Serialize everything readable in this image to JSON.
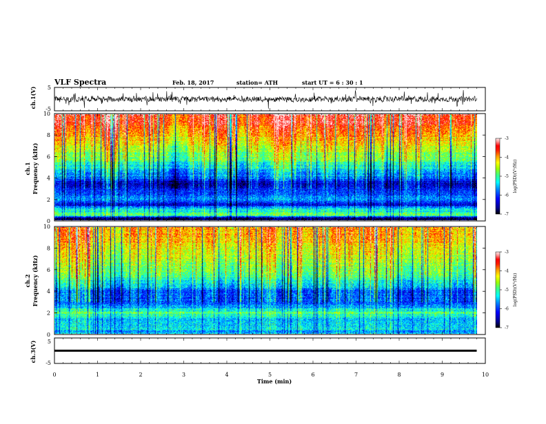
{
  "header": {
    "title": "VLF Spectra",
    "date": "Feb. 18, 2017",
    "station": "station= ATH",
    "start": "start  UT =   6  : 30 : 1"
  },
  "panels": {
    "ch1_wave": {
      "ylabel": "ch.1(V)",
      "ytick_top": "5",
      "ytick_bottom": "-5"
    },
    "ch1_spec": {
      "ylabel1": "ch.1",
      "ylabel2": "Frequency  (kHz)",
      "yticks": [
        "0",
        "2",
        "4",
        "6",
        "8",
        "10"
      ]
    },
    "ch2_spec": {
      "ylabel1": "ch.2",
      "ylabel2": "Frequency  (kHz)",
      "yticks": [
        "0",
        "2",
        "4",
        "6",
        "8",
        "10"
      ]
    },
    "ch3_wave": {
      "ylabel": "ch.3(V)",
      "ytick_top": "5",
      "ytick_bottom": "-5"
    }
  },
  "colorbar": {
    "label": "log(PSD)(V²/Hz)",
    "ticks": [
      "-3",
      "-4",
      "-5",
      "-6",
      "-7"
    ],
    "colors": [
      "#000000",
      "#00008c",
      "#0000ff",
      "#0080ff",
      "#00ffff",
      "#40ff80",
      "#a0ff00",
      "#ffff00",
      "#ffa000",
      "#ff2000",
      "#ff0000",
      "#ffa0a0",
      "#ffe8e8"
    ]
  },
  "chart_data": [
    {
      "type": "line",
      "title": "ch.1 waveform",
      "ylabel": "ch.1(V)",
      "xlim": [
        0,
        10
      ],
      "ylim": [
        -5,
        5
      ],
      "x_end": 9.8,
      "note_values": "noisy waveform around 0 V, amplitude ~ ±2 V"
    },
    {
      "type": "heatmap",
      "ylabel": "Frequency (kHz)",
      "channel": "ch.1",
      "xlim": [
        0,
        10
      ],
      "ylim": [
        0,
        10
      ],
      "x_end": 9.8,
      "zlim": [
        -7,
        -3
      ],
      "profile_freq_kHz": [
        0.25,
        0.5,
        1.0,
        1.5,
        2.0,
        2.5,
        3.0,
        3.5,
        4.0,
        5.0,
        6.0,
        7.0,
        8.0,
        9.0,
        10.0
      ],
      "profile_logPSD": [
        -6.7,
        -4.9,
        -5.2,
        -6.3,
        -5.6,
        -5.9,
        -6.2,
        -6.4,
        -5.8,
        -5.3,
        -4.7,
        -4.4,
        -4.0,
        -3.6,
        -3.4
      ]
    },
    {
      "type": "heatmap",
      "ylabel": "Frequency (kHz)",
      "channel": "ch.2",
      "xlim": [
        0,
        10
      ],
      "ylim": [
        0,
        10
      ],
      "x_end": 9.8,
      "zlim": [
        -7,
        -3
      ],
      "profile_freq_kHz": [
        0.25,
        0.5,
        1.0,
        1.5,
        2.0,
        2.5,
        3.0,
        3.5,
        4.0,
        5.0,
        6.0,
        7.0,
        8.0,
        9.0,
        10.0
      ],
      "profile_logPSD": [
        -5.6,
        -5.3,
        -5.4,
        -5.5,
        -4.9,
        -5.6,
        -5.9,
        -6.0,
        -5.9,
        -5.2,
        -4.8,
        -4.6,
        -4.4,
        -4.1,
        -4.0
      ]
    },
    {
      "type": "line",
      "title": "ch.3 waveform",
      "ylabel": "ch.3(V)",
      "xlim": [
        0,
        10
      ],
      "ylim": [
        -5,
        5
      ],
      "x_end": 9.8,
      "note_values": "flat band near 0 V"
    }
  ],
  "xaxis": {
    "label": "Time  (min)",
    "ticks": [
      "0",
      "1",
      "2",
      "3",
      "4",
      "5",
      "6",
      "7",
      "8",
      "9",
      "10"
    ]
  }
}
